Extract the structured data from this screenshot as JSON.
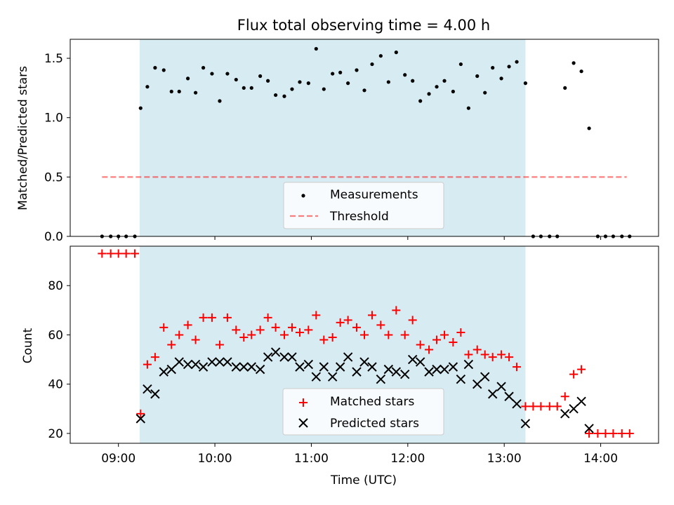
{
  "colors": {
    "shade": "#add8e6",
    "measurement": "#000000",
    "threshold": "#ff0000",
    "matched": "#ff0000",
    "predicted": "#000000"
  },
  "chart_data": [
    {
      "type": "scatter",
      "title": "Flux total observing time = 4.00 h",
      "ylabel": "Matched/Predicted stars",
      "xlabel": "",
      "xlim": [
        8.5,
        14.6
      ],
      "ylim": [
        0.0,
        1.66
      ],
      "y_ticks": [
        0.0,
        0.5,
        1.0,
        1.5
      ],
      "y_tick_labels": [
        "0.0",
        "0.5",
        "1.0",
        "1.5"
      ],
      "shaded_region": [
        9.22,
        13.22
      ],
      "threshold": {
        "name": "Threshold",
        "y": 0.5,
        "x_range": [
          8.83,
          14.27
        ]
      },
      "legend": [
        "Measurements",
        "Threshold"
      ],
      "series": [
        {
          "name": "Measurements",
          "x": [
            8.83,
            8.92,
            9.0,
            9.08,
            9.17,
            9.23,
            9.3,
            9.38,
            9.47,
            9.55,
            9.63,
            9.72,
            9.8,
            9.88,
            9.97,
            10.05,
            10.13,
            10.22,
            10.3,
            10.38,
            10.47,
            10.55,
            10.63,
            10.72,
            10.8,
            10.88,
            10.97,
            11.05,
            11.13,
            11.22,
            11.3,
            11.38,
            11.47,
            11.55,
            11.63,
            11.72,
            11.8,
            11.88,
            11.97,
            12.05,
            12.13,
            12.22,
            12.3,
            12.38,
            12.47,
            12.55,
            12.63,
            12.72,
            12.8,
            12.88,
            12.97,
            13.05,
            13.13,
            13.22,
            13.3,
            13.38,
            13.47,
            13.55,
            13.63,
            13.72,
            13.8,
            13.88,
            13.97,
            14.05,
            14.13,
            14.22,
            14.3
          ],
          "y": [
            0.0,
            0.0,
            0.0,
            0.0,
            0.0,
            1.08,
            1.26,
            1.42,
            1.4,
            1.22,
            1.22,
            1.33,
            1.21,
            1.42,
            1.37,
            1.14,
            1.37,
            1.32,
            1.25,
            1.25,
            1.35,
            1.31,
            1.19,
            1.18,
            1.24,
            1.3,
            1.29,
            1.58,
            1.24,
            1.37,
            1.38,
            1.29,
            1.4,
            1.23,
            1.45,
            1.52,
            1.3,
            1.55,
            1.36,
            1.31,
            1.14,
            1.2,
            1.26,
            1.31,
            1.22,
            1.45,
            1.08,
            1.35,
            1.21,
            1.42,
            1.33,
            1.43,
            1.47,
            1.29,
            0.0,
            0.0,
            0.0,
            0.0,
            1.25,
            1.46,
            1.39,
            0.91,
            0.0,
            0.0,
            0.0,
            0.0,
            0.0
          ]
        }
      ]
    },
    {
      "type": "scatter",
      "title": "",
      "ylabel": "Count",
      "xlabel": "Time (UTC)",
      "xlim": [
        8.5,
        14.6
      ],
      "ylim": [
        16,
        96
      ],
      "y_ticks": [
        20,
        40,
        60,
        80
      ],
      "y_tick_labels": [
        "20",
        "40",
        "60",
        "80"
      ],
      "x_ticks": [
        9,
        10,
        11,
        12,
        13,
        14
      ],
      "x_tick_labels": [
        "09:00",
        "10:00",
        "11:00",
        "12:00",
        "13:00",
        "14:00"
      ],
      "shaded_region": [
        9.22,
        13.22
      ],
      "legend": [
        "Matched stars",
        "Predicted stars"
      ],
      "series": [
        {
          "name": "Matched stars",
          "marker": "+",
          "x": [
            8.83,
            8.92,
            9.0,
            9.08,
            9.17,
            9.23,
            9.3,
            9.38,
            9.47,
            9.55,
            9.63,
            9.72,
            9.8,
            9.88,
            9.97,
            10.05,
            10.13,
            10.22,
            10.3,
            10.38,
            10.47,
            10.55,
            10.63,
            10.72,
            10.8,
            10.88,
            10.97,
            11.05,
            11.13,
            11.22,
            11.3,
            11.38,
            11.47,
            11.55,
            11.63,
            11.72,
            11.8,
            11.88,
            11.97,
            12.05,
            12.13,
            12.22,
            12.3,
            12.38,
            12.47,
            12.55,
            12.63,
            12.72,
            12.8,
            12.88,
            12.97,
            13.05,
            13.13,
            13.22,
            13.3,
            13.38,
            13.47,
            13.55,
            13.63,
            13.72,
            13.8,
            13.88,
            13.97,
            14.05,
            14.13,
            14.22,
            14.3
          ],
          "y": [
            93,
            93,
            93,
            93,
            93,
            28,
            48,
            51,
            63,
            56,
            60,
            64,
            58,
            67,
            67,
            56,
            67,
            62,
            59,
            60,
            62,
            67,
            63,
            60,
            63,
            61,
            62,
            68,
            58,
            59,
            65,
            66,
            63,
            60,
            68,
            64,
            60,
            70,
            60,
            66,
            56,
            54,
            58,
            60,
            57,
            61,
            52,
            54,
            52,
            51,
            52,
            51,
            47,
            31,
            31,
            31,
            31,
            31,
            35,
            44,
            46,
            20,
            20,
            20,
            20,
            20,
            20
          ]
        },
        {
          "name": "Predicted stars",
          "marker": "x",
          "x": [
            9.23,
            9.3,
            9.38,
            9.47,
            9.55,
            9.63,
            9.72,
            9.8,
            9.88,
            9.97,
            10.05,
            10.13,
            10.22,
            10.3,
            10.38,
            10.47,
            10.55,
            10.63,
            10.72,
            10.8,
            10.88,
            10.97,
            11.05,
            11.13,
            11.22,
            11.3,
            11.38,
            11.47,
            11.55,
            11.63,
            11.72,
            11.8,
            11.88,
            11.97,
            12.05,
            12.13,
            12.22,
            12.3,
            12.38,
            12.47,
            12.55,
            12.63,
            12.72,
            12.8,
            12.88,
            12.97,
            13.05,
            13.13,
            13.22,
            13.63,
            13.72,
            13.8,
            13.88
          ],
          "y": [
            26,
            38,
            36,
            45,
            46,
            49,
            48,
            48,
            47,
            49,
            49,
            49,
            47,
            47,
            47,
            46,
            51,
            53,
            51,
            51,
            47,
            48,
            43,
            47,
            43,
            47,
            51,
            45,
            49,
            47,
            42,
            46,
            45,
            44,
            50,
            49,
            45,
            46,
            46,
            47,
            42,
            48,
            40,
            43,
            36,
            39,
            35,
            32,
            24,
            28,
            30,
            33,
            22
          ]
        }
      ]
    }
  ]
}
